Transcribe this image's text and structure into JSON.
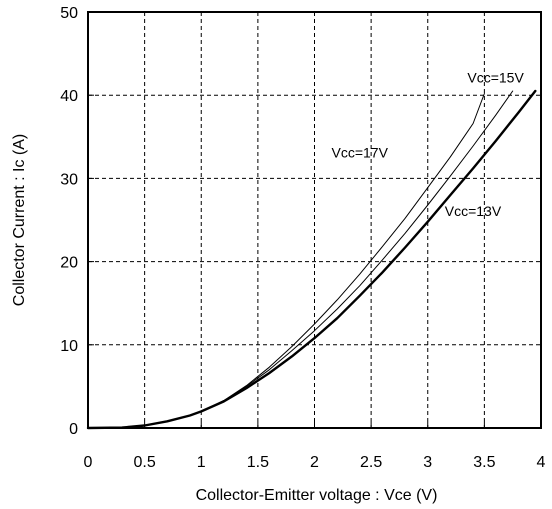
{
  "chart_data": {
    "type": "line",
    "title": "",
    "xlabel": "Collector-Emitter voltage : Vce  (V)",
    "ylabel": "Collector Current : Ic  (A)",
    "xlim": [
      0,
      4
    ],
    "ylim": [
      0,
      50
    ],
    "x_ticks": [
      "0",
      "0.5",
      "1",
      "1.5",
      "2",
      "2.5",
      "3",
      "3.5",
      "4"
    ],
    "y_ticks": [
      "0",
      "10",
      "20",
      "30",
      "40",
      "50"
    ],
    "grid": true,
    "grid_style": "dashed",
    "series": [
      {
        "name": "Vcc=13V",
        "line": "thick",
        "x": [
          0,
          0.3,
          0.5,
          0.7,
          0.9,
          1.0,
          1.2,
          1.4,
          1.6,
          1.8,
          2.0,
          2.2,
          2.4,
          2.6,
          2.8,
          3.0,
          3.2,
          3.4,
          3.6,
          3.8,
          3.95
        ],
        "y": [
          0,
          0.05,
          0.3,
          0.8,
          1.5,
          2.0,
          3.2,
          4.8,
          6.6,
          8.6,
          10.8,
          13.2,
          15.9,
          18.7,
          21.7,
          24.8,
          28.0,
          31.2,
          34.5,
          37.9,
          40.5
        ]
      },
      {
        "name": "Vcc=15V",
        "line": "thin",
        "x": [
          0,
          0.3,
          0.5,
          0.7,
          0.9,
          1.0,
          1.2,
          1.4,
          1.6,
          1.8,
          2.0,
          2.2,
          2.4,
          2.6,
          2.8,
          3.0,
          3.2,
          3.4,
          3.6,
          3.75
        ],
        "y": [
          0,
          0.05,
          0.3,
          0.8,
          1.5,
          2.0,
          3.3,
          5.0,
          7.0,
          9.3,
          11.7,
          14.3,
          17.1,
          20.2,
          23.4,
          26.8,
          30.3,
          33.9,
          37.6,
          40.5
        ]
      },
      {
        "name": "Vcc=17V",
        "line": "thin",
        "x": [
          0,
          0.3,
          0.5,
          0.7,
          0.9,
          1.0,
          1.2,
          1.4,
          1.6,
          1.8,
          2.0,
          2.2,
          2.4,
          2.6,
          2.8,
          3.0,
          3.2,
          3.4,
          3.5
        ],
        "y": [
          0,
          0.05,
          0.3,
          0.8,
          1.5,
          2.0,
          3.3,
          5.1,
          7.3,
          9.8,
          12.5,
          15.4,
          18.5,
          21.8,
          25.2,
          28.9,
          32.6,
          36.6,
          40.2
        ]
      }
    ],
    "annotations": [
      {
        "text": "Vcc=15V",
        "x": 3.35,
        "y": 41.5
      },
      {
        "text": "Vcc=17V",
        "x": 2.15,
        "y": 32.5
      },
      {
        "text": "Vcc=13V",
        "x": 3.15,
        "y": 25.5
      }
    ]
  }
}
